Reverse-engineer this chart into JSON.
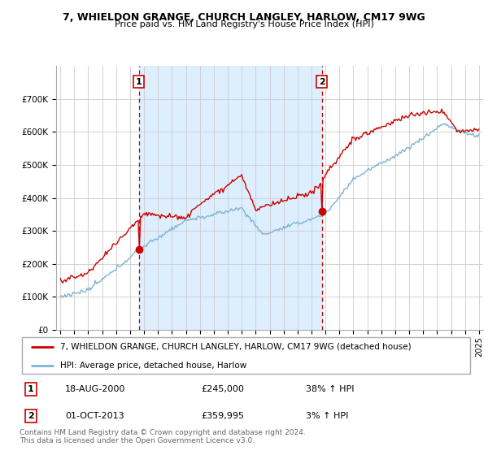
{
  "title1": "7, WHIELDON GRANGE, CHURCH LANGLEY, HARLOW, CM17 9WG",
  "title2": "Price paid vs. HM Land Registry's House Price Index (HPI)",
  "legend_line1": "7, WHIELDON GRANGE, CHURCH LANGLEY, HARLOW, CM17 9WG (detached house)",
  "legend_line2": "HPI: Average price, detached house, Harlow",
  "footer": "Contains HM Land Registry data © Crown copyright and database right 2024.\nThis data is licensed under the Open Government Licence v3.0.",
  "sale1_date": "18-AUG-2000",
  "sale1_price": "£245,000",
  "sale1_hpi": "38% ↑ HPI",
  "sale1_x": 2000.63,
  "sale1_y": 245000,
  "sale2_date": "01-OCT-2013",
  "sale2_price": "£359,995",
  "sale2_hpi": "3% ↑ HPI",
  "sale2_x": 2013.75,
  "sale2_y": 359995,
  "vline1_x": 2000.63,
  "vline2_x": 2013.75,
  "hpi_color": "#7fb3d3",
  "price_color": "#cc0000",
  "vline_color": "#cc0000",
  "dot_color": "#cc0000",
  "shade_color": "#ddeeff",
  "ylim": [
    0,
    800000
  ],
  "xlim_start": 1994.7,
  "xlim_end": 2025.3,
  "yticks": [
    0,
    100000,
    200000,
    300000,
    400000,
    500000,
    600000,
    700000
  ],
  "ytick_labels": [
    "£0",
    "£100K",
    "£200K",
    "£300K",
    "£400K",
    "£500K",
    "£600K",
    "£700K"
  ],
  "xticks": [
    1995,
    1996,
    1997,
    1998,
    1999,
    2000,
    2001,
    2002,
    2003,
    2004,
    2005,
    2006,
    2007,
    2008,
    2009,
    2010,
    2011,
    2012,
    2013,
    2014,
    2015,
    2016,
    2017,
    2018,
    2019,
    2020,
    2021,
    2022,
    2023,
    2024,
    2025
  ]
}
